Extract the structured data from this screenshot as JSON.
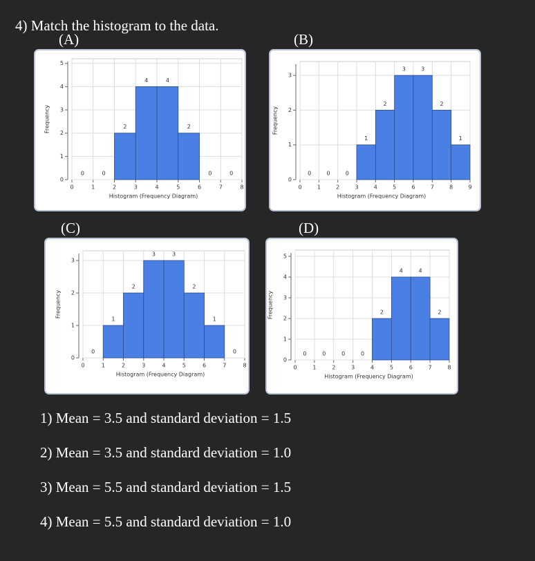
{
  "title": "4) Match the histogram to the data.",
  "chart_data": [
    {
      "type": "histogram",
      "panel_label": "(A)",
      "xlabel": "Histogram (Frequency Diagram)",
      "ylabel": "Frequency",
      "bins": [
        0,
        1,
        2,
        3,
        4,
        5,
        6,
        7,
        8
      ],
      "values": [
        0,
        0,
        2,
        4,
        4,
        2,
        0,
        0
      ],
      "color": "#4a7fe3",
      "xlim": [
        0,
        8
      ],
      "xticks": [
        0,
        1,
        2,
        3,
        4,
        5,
        6,
        7,
        8
      ],
      "ylim": [
        0,
        5.2
      ],
      "yticks": [
        0,
        1,
        2,
        3,
        4,
        5
      ],
      "grid": true
    },
    {
      "type": "histogram",
      "panel_label": "(B)",
      "xlabel": "Histogram (Frequency Diagram)",
      "ylabel": "Frequency",
      "bins": [
        0,
        1,
        2,
        3,
        4,
        5,
        6,
        7,
        8,
        9
      ],
      "values": [
        0,
        0,
        0,
        1,
        2,
        3,
        3,
        2,
        1
      ],
      "color": "#4a7fe3",
      "xlim": [
        0,
        9
      ],
      "xticks": [
        0,
        1,
        2,
        3,
        4,
        5,
        6,
        7,
        8,
        9
      ],
      "ylim": [
        0,
        3.4
      ],
      "yticks": [
        0,
        1,
        2,
        3
      ],
      "grid": true
    },
    {
      "type": "histogram",
      "panel_label": "(C)",
      "xlabel": "Histogram (Frequency Diagram)",
      "ylabel": "Frequency",
      "bins": [
        0,
        1,
        2,
        3,
        4,
        5,
        6,
        7,
        8
      ],
      "values": [
        0,
        1,
        2,
        3,
        3,
        2,
        1,
        0
      ],
      "color": "#4a7fe3",
      "xlim": [
        0,
        8
      ],
      "xticks": [
        0,
        1,
        2,
        3,
        4,
        5,
        6,
        7,
        8
      ],
      "ylim": [
        0,
        3.3
      ],
      "yticks": [
        0,
        1,
        2,
        3
      ],
      "grid": true
    },
    {
      "type": "histogram",
      "panel_label": "(D)",
      "xlabel": "Histogram (Frequency Diagram)",
      "ylabel": "Frequency",
      "bins": [
        0,
        1,
        2,
        3,
        4,
        5,
        6,
        7,
        8
      ],
      "values": [
        0,
        0,
        0,
        0,
        2,
        4,
        4,
        2
      ],
      "color": "#4a7fe3",
      "xlim": [
        0,
        8
      ],
      "xticks": [
        0,
        1,
        2,
        3,
        4,
        5,
        6,
        7,
        8
      ],
      "ylim": [
        0,
        5.3
      ],
      "yticks": [
        0,
        1,
        2,
        3,
        4,
        5
      ],
      "grid": true
    }
  ],
  "options": [
    "1)  Mean = 3.5 and standard deviation = 1.5",
    "2)  Mean = 3.5 and standard deviation = 1.0",
    "3)  Mean = 5.5 and standard deviation = 1.5",
    "4)  Mean = 5.5 and standard deviation = 1.0"
  ]
}
